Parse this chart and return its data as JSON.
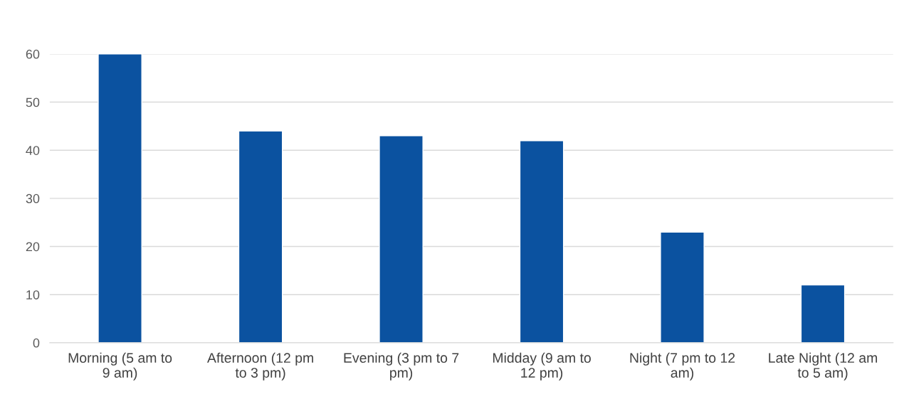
{
  "chart_data": {
    "type": "bar",
    "categories": [
      "Morning (5 am to\n9 am)",
      "Afternoon (12 pm\nto 3 pm)",
      "Evening (3 pm to 7\npm)",
      "Midday (9 am to\n12 pm)",
      "Night (7 pm to 12\nam)",
      "Late Night (12 am\nto 5 am)"
    ],
    "values": [
      60,
      44,
      43,
      42,
      23,
      12
    ],
    "color": "#0b52a0",
    "ylim": [
      0,
      60
    ],
    "yticks": [
      0,
      10,
      20,
      30,
      40,
      50,
      60
    ],
    "grid": "y",
    "legend": false
  }
}
